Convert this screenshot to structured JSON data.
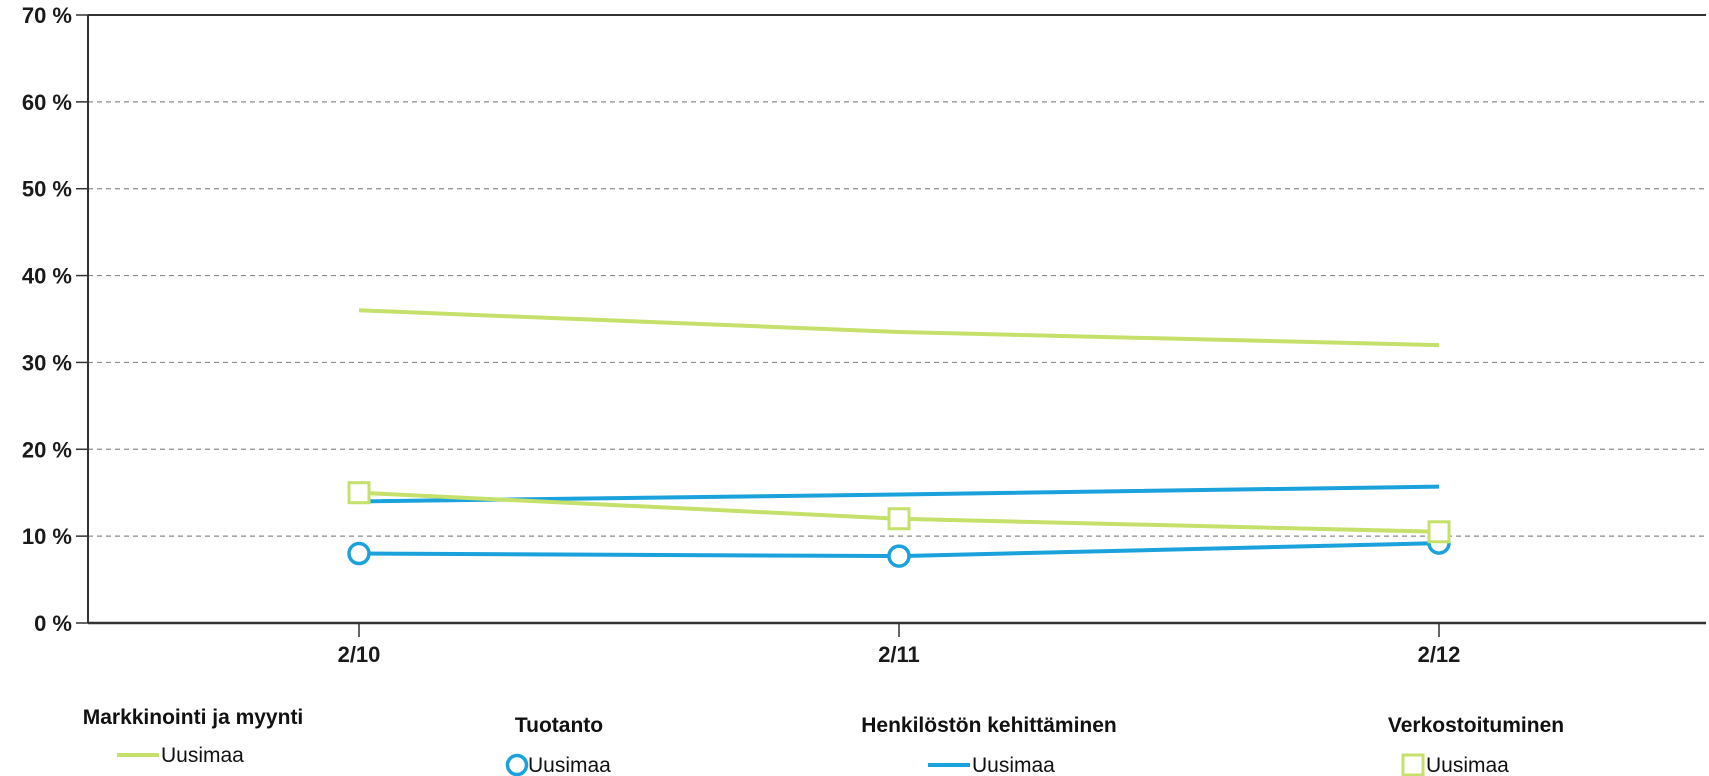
{
  "colors": {
    "lime": "#C5E06B",
    "blue": "#1BA1DC",
    "grid": "#8C8C8C",
    "axis": "#333333"
  },
  "chart_data": {
    "type": "line",
    "title": "",
    "xlabel": "",
    "ylabel": "",
    "categories": [
      "2/10",
      "2/11",
      "2/12"
    ],
    "ylim": [
      0,
      70
    ],
    "yticks": [
      0,
      10,
      20,
      30,
      40,
      50,
      60,
      70
    ],
    "ytick_labels": [
      "0 %",
      "10 %",
      "20 %",
      "30 %",
      "40 %",
      "50 %",
      "60 %",
      "70 %"
    ],
    "grid": "horizontal dashed",
    "legend_position": "bottom",
    "series": [
      {
        "group": "Markkinointi ja myynti",
        "name": "Uusimaa",
        "color": "#C5E06B",
        "marker": "none",
        "values": [
          36.0,
          33.5,
          32.0
        ]
      },
      {
        "group": "Tuotanto",
        "name": "Uusimaa",
        "color": "#1BA1DC",
        "marker": "circle",
        "values": [
          8.0,
          7.7,
          9.2
        ]
      },
      {
        "group": "Henkilöstön kehittäminen",
        "name": "Uusimaa",
        "color": "#1BA1DC",
        "marker": "none",
        "values": [
          14.0,
          14.8,
          15.7
        ]
      },
      {
        "group": "Verkostoituminen",
        "name": "Uusimaa",
        "color": "#C5E06B",
        "marker": "square",
        "values": [
          15.0,
          12.0,
          10.5
        ]
      }
    ]
  }
}
